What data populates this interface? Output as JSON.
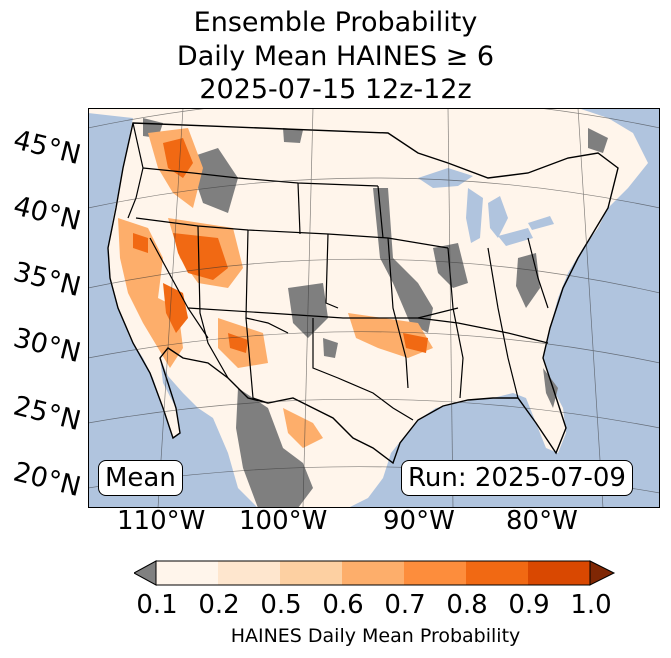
{
  "title": {
    "line1": "Ensemble Probability",
    "line2": "Daily Mean HAINES ≥ 6",
    "line3": "2025-07-15 12z-12z"
  },
  "map": {
    "latitude_labels": [
      "45°N",
      "40°N",
      "35°N",
      "30°N",
      "25°N",
      "20°N"
    ],
    "longitude_labels": [
      "110°W",
      "100°W",
      "90°W",
      "80°W"
    ],
    "colors": {
      "ocean": "#b0c4de",
      "no_data_gray": "#7f7f7f",
      "background_light": "#fff5eb"
    },
    "stat_label": "Mean",
    "run_label": "Run: 2025-07-09"
  },
  "colorbar": {
    "ticks": [
      "0.1",
      "0.2",
      "0.5",
      "0.6",
      "0.7",
      "0.8",
      "0.9",
      "1.0"
    ],
    "colors": [
      "#fff5eb",
      "#fee6ce",
      "#fdd0a2",
      "#fdae6b",
      "#fd8d3c",
      "#f16913",
      "#d94801"
    ],
    "under_color": "#808080",
    "over_color": "#7f2704",
    "label": "HAINES Daily Mean Probability"
  }
}
